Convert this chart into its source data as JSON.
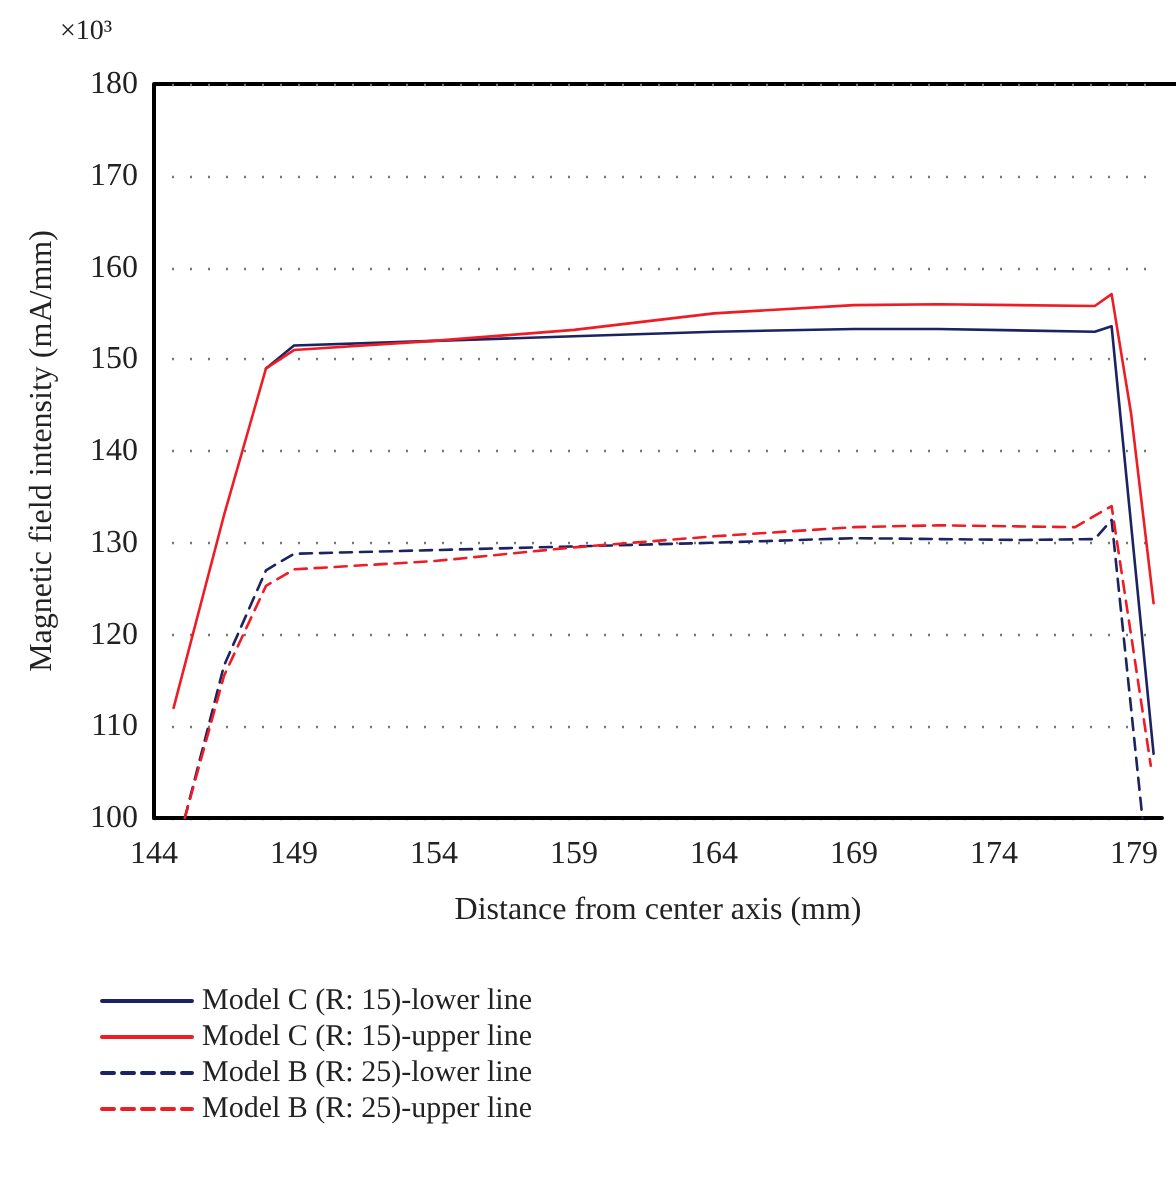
{
  "chart_data": {
    "type": "line",
    "xlabel": "Distance from center axis (mm)",
    "ylabel": "Magnetic field intensity (mA/mm)",
    "annotations": [
      "×10³"
    ],
    "xlim": [
      144,
      180
    ],
    "xticks": [
      144,
      149,
      154,
      159,
      164,
      169,
      174,
      179
    ],
    "ylim": [
      100,
      180
    ],
    "yticks": [
      100,
      110,
      120,
      130,
      140,
      150,
      160,
      170,
      180
    ],
    "grid": "y",
    "legend": "bottom",
    "line_style": "solid",
    "marker": "none",
    "series": [
      {
        "name": "Model C (R: 15)-lower line",
        "color": "#1b2360",
        "x": [
          148,
          149,
          154,
          159,
          164,
          169,
          172,
          177.6,
          178.2,
          179.7
        ],
        "values": [
          149,
          151.5,
          152,
          152.5,
          153,
          153.3,
          153.3,
          153,
          153.6,
          107
        ]
      },
      {
        "name": "Model C (R: 15)-upper line",
        "color": "#ee1c25",
        "x": [
          144.7,
          146.5,
          148,
          149,
          154,
          159,
          164,
          169,
          172,
          177.6,
          178.2,
          178.9,
          179.7
        ],
        "values": [
          112,
          133,
          149,
          151,
          152,
          153.2,
          155,
          155.9,
          156,
          155.8,
          157.1,
          144,
          123.4
        ]
      },
      {
        "name": "Model B (R: 25)-lower line",
        "color": "#1b2360",
        "line_style": "dashed",
        "x": [
          145.1,
          146.5,
          148,
          149,
          154,
          159,
          164,
          169,
          175,
          177.6,
          178.2,
          179.3
        ],
        "values": [
          100,
          116.6,
          127,
          128.8,
          129.2,
          129.6,
          130,
          130.5,
          130.3,
          130.4,
          132.5,
          100
        ]
      },
      {
        "name": "Model B (R: 25)-upper line",
        "color": "#ee1c25",
        "line_style": "dashed",
        "x": [
          145.1,
          146.5,
          148,
          149,
          154,
          159,
          164,
          169,
          172,
          176.9,
          178.2,
          179.6
        ],
        "values": [
          100,
          115.5,
          125.3,
          127.1,
          128,
          129.5,
          130.7,
          131.7,
          131.9,
          131.7,
          134,
          105.7
        ]
      }
    ]
  }
}
